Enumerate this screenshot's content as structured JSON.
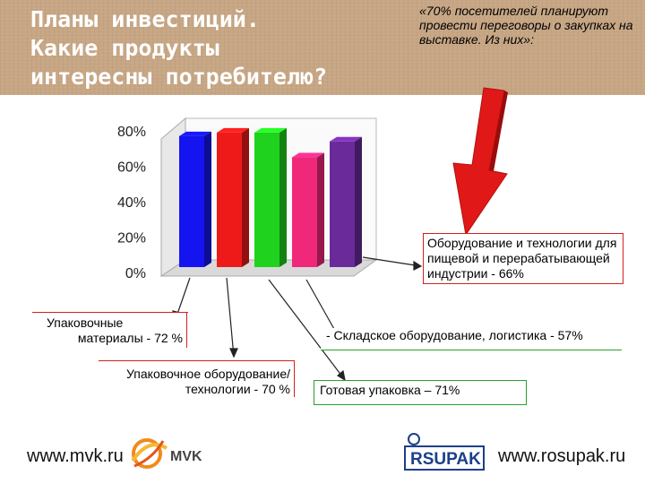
{
  "header": {
    "title": "Планы инвестиций.\nКакие продукты\nинтересны потребителю?",
    "intro": "«70% посетителей планируют провести переговоры о закупках на выставке. Из них»:"
  },
  "chart_data": {
    "type": "bar",
    "categories": [
      "Упаковочные материалы",
      "Оборудование и технологии для пищевой и перерабатывающей индустрии",
      "Упаковочное оборудование/ технологии",
      "Складское оборудование, логистика",
      "Готовая упаковка"
    ],
    "values": [
      72,
      66,
      70,
      57,
      71
    ],
    "bar_heights_pct": [
      74,
      76,
      76,
      62,
      71
    ],
    "colors": [
      "#1414f0",
      "#ee1a1a",
      "#1ed21e",
      "#f0287a",
      "#6a2a9a"
    ],
    "yticks": [
      "80%",
      "60%",
      "40%",
      "20%",
      "0%"
    ],
    "ylim": [
      0,
      80
    ],
    "grid": false
  },
  "callouts": [
    {
      "text": "Оборудование и технологии для пищевой и перерабатывающей индустрии - 66%"
    },
    {
      "line1": "Упаковочные",
      "line2": "материалы - 72 %"
    },
    {
      "line1": "Упаковочное оборудование/",
      "line2": "технологии - 70 %"
    },
    {
      "text": "- Складское оборудование, логистика - 57%"
    },
    {
      "text": "Готовая упаковка – 71%"
    }
  ],
  "footer": {
    "left_url": "www.mvk.ru",
    "right_url": "www.rosupak.ru",
    "mvk_logo_text": "MVK",
    "rosupak_logo_text": "RSUPAK"
  },
  "colors": {
    "header_bg": "#c7a684",
    "arrow": "#e01818",
    "callout_red_border": "#d42020",
    "callout_green_border": "#2aa02a"
  }
}
